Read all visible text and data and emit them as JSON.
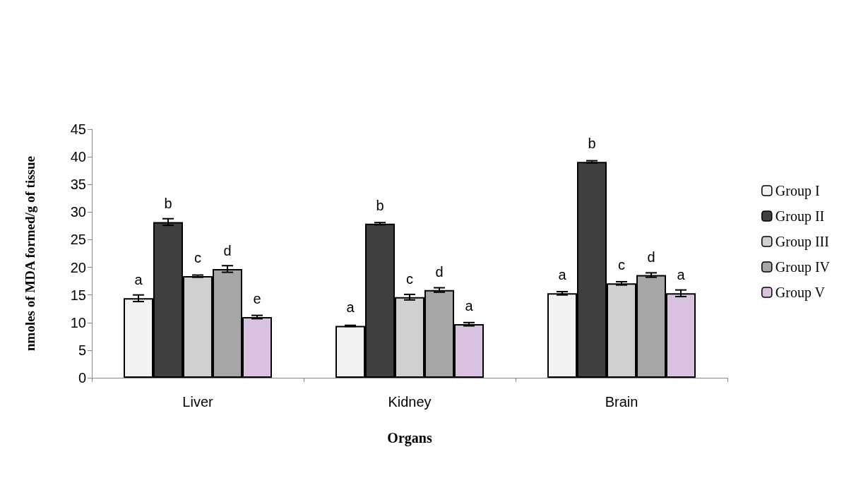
{
  "chart_data": {
    "type": "bar",
    "xlabel": "Organs",
    "ylabel": "nmoles of MDA formed/g of tissue",
    "categories": [
      "Liver",
      "Kidney",
      "Brain"
    ],
    "series": [
      {
        "name": "Group I",
        "color": "#f2f2f2",
        "values": [
          14.4,
          9.4,
          15.3
        ],
        "errors": [
          0.6,
          0.1,
          0.3
        ],
        "value_labels": [
          "a",
          "a",
          "a"
        ]
      },
      {
        "name": "Group II",
        "color": "#404040",
        "values": [
          28.2,
          27.9,
          39.1
        ],
        "errors": [
          0.6,
          0.2,
          0.2
        ],
        "value_labels": [
          "b",
          "b",
          "b"
        ]
      },
      {
        "name": "Group III",
        "color": "#d0d0d0",
        "values": [
          18.4,
          14.6,
          17.1
        ],
        "errors": [
          0.2,
          0.5,
          0.3
        ],
        "value_labels": [
          "c",
          "c",
          "c"
        ]
      },
      {
        "name": "Group IV",
        "color": "#a6a6a6",
        "values": [
          19.7,
          15.9,
          18.6
        ],
        "errors": [
          0.6,
          0.4,
          0.4
        ],
        "value_labels": [
          "d",
          "d",
          "d"
        ]
      },
      {
        "name": "Group V",
        "color": "#d9c2e0",
        "values": [
          11.0,
          9.7,
          15.3
        ],
        "errors": [
          0.3,
          0.3,
          0.6
        ],
        "value_labels": [
          "e",
          "a",
          "a"
        ]
      }
    ],
    "ylim": [
      0,
      45
    ],
    "yticks": [
      0,
      5,
      10,
      15,
      20,
      25,
      30,
      35,
      40,
      45
    ],
    "grid": false,
    "legend": "right"
  }
}
